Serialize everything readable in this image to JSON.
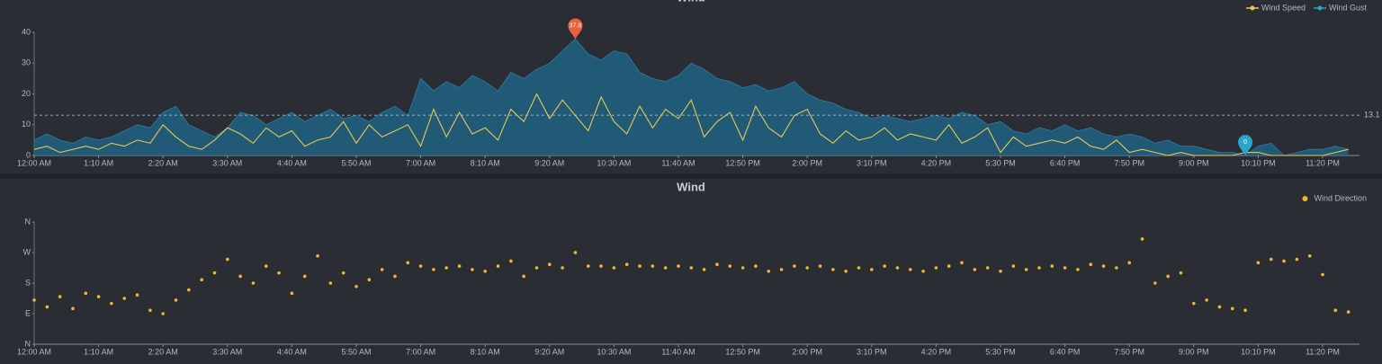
{
  "chart_data": [
    {
      "type": "line",
      "title": "Wind",
      "legend": "top-right",
      "mark_line": 13.1,
      "categories": [
        "12:00 AM",
        null,
        null,
        null,
        null,
        "1:10 AM",
        null,
        null,
        null,
        null,
        "2:20 AM",
        null,
        null,
        null,
        null,
        "3:30 AM",
        null,
        null,
        null,
        null,
        "4:40 AM",
        null,
        null,
        null,
        null,
        "5:50 AM",
        null,
        null,
        null,
        null,
        "7:00 AM",
        null,
        null,
        null,
        null,
        "8:10 AM",
        null,
        null,
        null,
        null,
        "9:20 AM",
        null,
        null,
        null,
        null,
        "10:30 AM",
        null,
        null,
        null,
        null,
        "11:40 AM",
        null,
        null,
        null,
        null,
        "12:50 PM",
        null,
        null,
        null,
        null,
        "2:00 PM",
        null,
        null,
        null,
        null,
        "3:10 PM",
        null,
        null,
        null,
        null,
        "4:20 PM",
        null,
        null,
        null,
        null,
        "5:30 PM",
        null,
        null,
        null,
        null,
        "6:40 PM",
        null,
        null,
        null,
        null,
        "7:50 PM",
        null,
        null,
        null,
        null,
        "9:00 PM",
        null,
        null,
        null,
        null,
        "10:10 PM",
        null,
        null,
        null,
        null,
        "11:20 PM",
        null,
        null
      ],
      "series": [
        {
          "name": "Wind Speed",
          "color": "#e6c84f",
          "values": [
            2,
            3,
            1,
            2,
            3,
            2,
            4,
            3,
            5,
            4,
            10,
            6,
            3,
            2,
            5,
            9,
            7,
            4,
            9,
            6,
            8,
            3,
            5,
            6,
            11,
            4,
            10,
            6,
            8,
            10,
            3,
            15,
            6,
            14,
            7,
            9,
            5,
            15,
            11,
            20,
            12,
            18,
            13,
            8,
            19,
            11,
            7,
            16,
            9,
            15,
            12,
            18,
            6,
            11,
            14,
            5,
            16,
            9,
            6,
            13,
            15,
            7,
            4,
            8,
            5,
            6,
            9,
            5,
            7,
            6,
            5,
            10,
            4,
            6,
            9,
            1,
            6,
            3,
            4,
            5,
            4,
            6,
            3,
            2,
            5,
            1,
            2,
            1,
            0,
            1,
            0,
            0,
            0,
            0,
            1,
            1,
            0,
            0,
            0,
            0,
            0,
            1,
            2
          ]
        },
        {
          "name": "Wind Gust",
          "color": "#2ba6cb",
          "area": true,
          "values": [
            5,
            7,
            5,
            4,
            6,
            5,
            6,
            8,
            10,
            9,
            14,
            16,
            10,
            8,
            6,
            9,
            14,
            13,
            10,
            12,
            14,
            11,
            13,
            15,
            12,
            13,
            11,
            14,
            16,
            13,
            25,
            21,
            24,
            22,
            26,
            24,
            21,
            27,
            25,
            28,
            30,
            34,
            37.8,
            33,
            31,
            34,
            33,
            27,
            25,
            24,
            26,
            30,
            28,
            25,
            24,
            22,
            23,
            21,
            22,
            24,
            20,
            18,
            17,
            15,
            14,
            12,
            13,
            12,
            11,
            12,
            13,
            12,
            14,
            13,
            10,
            11,
            8,
            7,
            9,
            8,
            10,
            8,
            9,
            7,
            6,
            7,
            6,
            4,
            5,
            3,
            3,
            2,
            1,
            1,
            0,
            3,
            4,
            0,
            1,
            2,
            2,
            3,
            2
          ]
        }
      ],
      "ylim": [
        0,
        40
      ],
      "yticks": [
        0,
        10,
        20,
        30,
        40
      ]
    },
    {
      "type": "scatter",
      "title": "Wind",
      "legend": "top-right",
      "categories": [
        "12:00 AM",
        null,
        null,
        null,
        null,
        "1:10 AM",
        null,
        null,
        null,
        null,
        "2:20 AM",
        null,
        null,
        null,
        null,
        "3:30 AM",
        null,
        null,
        null,
        null,
        "4:40 AM",
        null,
        null,
        null,
        null,
        "5:50 AM",
        null,
        null,
        null,
        null,
        "7:00 AM",
        null,
        null,
        null,
        null,
        "8:10 AM",
        null,
        null,
        null,
        null,
        "9:20 AM",
        null,
        null,
        null,
        null,
        "10:30 AM",
        null,
        null,
        null,
        null,
        "11:40 AM",
        null,
        null,
        null,
        null,
        "12:50 PM",
        null,
        null,
        null,
        null,
        "2:00 PM",
        null,
        null,
        null,
        null,
        "3:10 PM",
        null,
        null,
        null,
        null,
        "4:20 PM",
        null,
        null,
        null,
        null,
        "5:30 PM",
        null,
        null,
        null,
        null,
        "6:40 PM",
        null,
        null,
        null,
        null,
        "7:50 PM",
        null,
        null,
        null,
        null,
        "9:00 PM",
        null,
        null,
        null,
        null,
        "10:10 PM",
        null,
        null,
        null,
        null,
        "11:20 PM",
        null,
        null
      ],
      "series": [
        {
          "name": "Wind Direction",
          "color": "#f0b72f",
          "values": [
            130,
            110,
            140,
            105,
            150,
            140,
            120,
            135,
            145,
            100,
            90,
            130,
            160,
            190,
            210,
            250,
            200,
            180,
            230,
            210,
            150,
            200,
            260,
            180,
            210,
            170,
            190,
            220,
            200,
            240,
            230,
            220,
            225,
            230,
            220,
            215,
            230,
            245,
            200,
            225,
            235,
            225,
            270,
            230,
            230,
            225,
            235,
            230,
            230,
            225,
            230,
            225,
            220,
            235,
            230,
            225,
            230,
            215,
            220,
            230,
            225,
            230,
            220,
            215,
            225,
            220,
            230,
            225,
            220,
            215,
            225,
            230,
            240,
            220,
            225,
            215,
            230,
            220,
            225,
            230,
            225,
            220,
            235,
            230,
            225,
            240,
            310,
            180,
            200,
            210,
            120,
            130,
            110,
            105,
            100,
            240,
            250,
            245,
            250,
            260,
            205,
            100,
            95
          ]
        }
      ],
      "ylim": [
        0,
        360
      ],
      "yticks": [
        {
          "value": 0,
          "label": "N"
        },
        {
          "value": 90,
          "label": "E"
        },
        {
          "value": 180,
          "label": "S"
        },
        {
          "value": 270,
          "label": "W"
        },
        {
          "value": 360,
          "label": "N"
        }
      ]
    }
  ]
}
